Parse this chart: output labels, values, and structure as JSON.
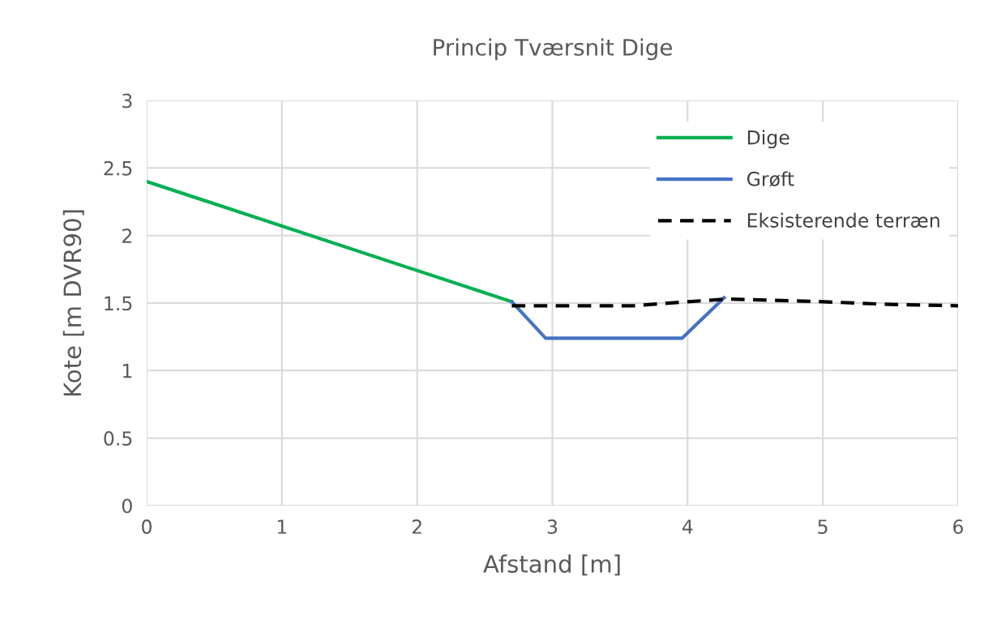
{
  "chart_data": {
    "type": "line",
    "title": "Princip Tværsnit Dige",
    "xlabel": "Afstand [m]",
    "ylabel": "Kote [m DVR90]",
    "xlim": [
      0,
      6
    ],
    "xticks": [
      0,
      1,
      2,
      3,
      4,
      5,
      6
    ],
    "ylim": [
      0,
      3
    ],
    "yticks": [
      0,
      0.5,
      1,
      1.5,
      2,
      2.5,
      3
    ],
    "grid": true,
    "legend": "top right",
    "series": [
      {
        "name": "Dige",
        "color": "#00b050",
        "x": [
          0,
          2.7
        ],
        "values": [
          2.4,
          1.51
        ]
      },
      {
        "name": "Grøft",
        "color": "#4472c4",
        "x": [
          2.7,
          2.95,
          3.96,
          4.27
        ],
        "values": [
          1.51,
          1.24,
          1.24,
          1.54
        ]
      },
      {
        "name": "Eksisterende terræn",
        "color": "#000000",
        "line_style": "dashed",
        "x": [
          2.7,
          3.6,
          4.0,
          4.3,
          5.0,
          5.5,
          6.0
        ],
        "values": [
          1.48,
          1.48,
          1.51,
          1.53,
          1.51,
          1.49,
          1.48
        ]
      }
    ]
  }
}
